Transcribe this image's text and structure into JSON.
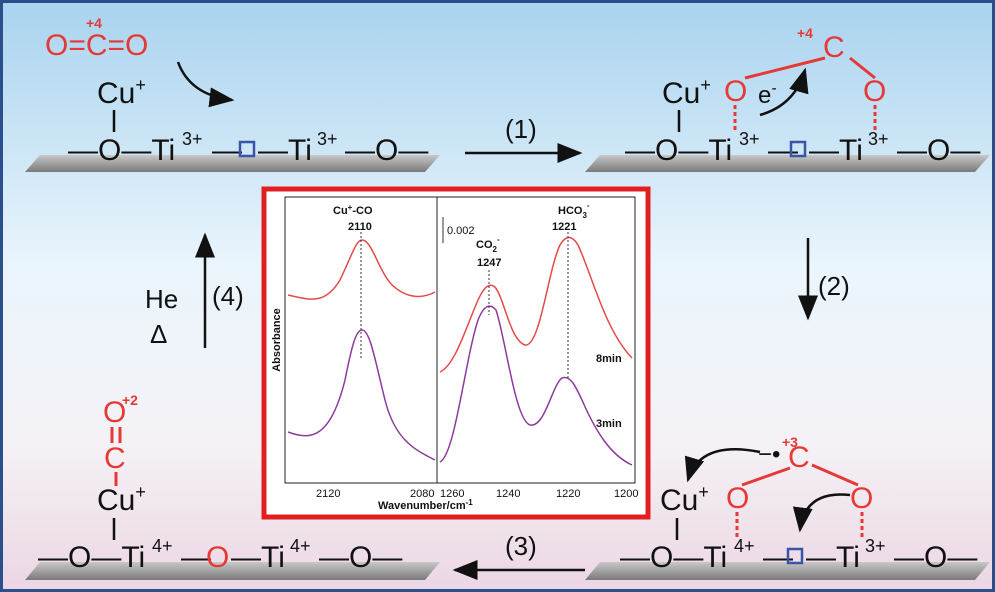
{
  "states": [
    {
      "adsorbate": {
        "molecule": "O=C=O",
        "oxidation": "+4"
      },
      "cu": {
        "symbol": "Cu",
        "charge": "+"
      },
      "surface": {
        "left": "—O—Ti",
        "left_charge": "3+",
        "bridge": "—",
        "right": "—Ti",
        "right_charge": "3+",
        "end": "—O—"
      }
    },
    {
      "adsorbate": {
        "carbon": "C",
        "oxidation": "+4",
        "oxygen_left": "O",
        "oxygen_right": "O",
        "electron": "e",
        "electron_charge": "-"
      },
      "cu": {
        "symbol": "Cu",
        "charge": "+"
      },
      "surface": {
        "left": "—O—Ti",
        "left_charge": "3+",
        "bridge": "—",
        "right": "—Ti",
        "right_charge": "3+",
        "end": "—O—"
      }
    },
    {
      "adsorbate": {
        "carbon": "C",
        "oxidation": "+3",
        "radical": "−•",
        "oxygen_left": "O",
        "oxygen_right": "O"
      },
      "cu": {
        "symbol": "Cu",
        "charge": "+"
      },
      "surface": {
        "left": "—O—Ti",
        "left_charge": "4+",
        "bridge": "—",
        "right": "—Ti",
        "right_charge": "3+",
        "end": "—O—"
      }
    },
    {
      "adsorbate": {
        "oxygen": "O",
        "oxidation": "+2",
        "carbon": "C"
      },
      "cu": {
        "symbol": "Cu",
        "charge": "+"
      },
      "surface": {
        "left": "—O—Ti",
        "left_charge": "4+",
        "bridge": "—",
        "filled_oxygen": "O",
        "right": "—Ti",
        "right_charge": "4+",
        "end": "—O—"
      }
    }
  ],
  "steps": [
    "(1)",
    "(2)",
    "(3)",
    "(4)"
  ],
  "conditions": [
    "He",
    "Δ"
  ],
  "inset": {
    "y_label": "Absorbance",
    "x_label": "Wavenumber/cm",
    "x_label_sup": "-1",
    "scale_bar": "0.002",
    "left_x_ticks": [
      "2120",
      "2080"
    ],
    "right_x_ticks": [
      "1260",
      "1240",
      "1220",
      "1200"
    ],
    "peaks": [
      {
        "name": "Cu",
        "sup": "+",
        "rest": "-CO",
        "position": "2110"
      },
      {
        "name": "CO",
        "sub": "2",
        "sup": "-",
        "position": "1247"
      },
      {
        "name": "HCO",
        "sub": "3",
        "sup": "-",
        "position": "1221"
      }
    ],
    "traces": [
      "8min",
      "3min"
    ]
  }
}
